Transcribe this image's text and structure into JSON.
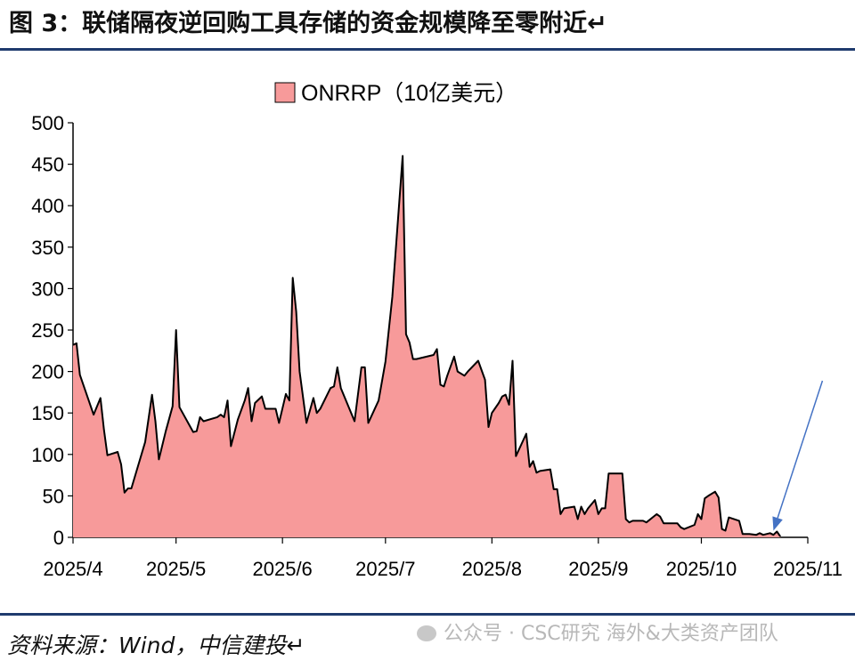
{
  "figure": {
    "title": "图 3：联储隔夜逆回购工具存储的资金规模降至零附近↵",
    "source": "资料来源：Wind，中信建投↵",
    "watermark": "公众号 · CSC研究 海外&大类资产团队"
  },
  "chart_data": {
    "type": "area",
    "title": "",
    "xlabel": "",
    "ylabel": "",
    "ylim": [
      0,
      500
    ],
    "y_ticks": [
      0,
      50,
      100,
      150,
      200,
      250,
      300,
      350,
      400,
      450,
      500
    ],
    "x_range": [
      "2025-04-01",
      "2025-11-01"
    ],
    "x_ticks": [
      {
        "date": "2025-04-01",
        "label": "2025/4"
      },
      {
        "date": "2025-05-01",
        "label": "2025/5"
      },
      {
        "date": "2025-06-01",
        "label": "2025/6"
      },
      {
        "date": "2025-07-01",
        "label": "2025/7"
      },
      {
        "date": "2025-08-01",
        "label": "2025/8"
      },
      {
        "date": "2025-09-01",
        "label": "2025/9"
      },
      {
        "date": "2025-10-01",
        "label": "2025/10"
      },
      {
        "date": "2025-11-01",
        "label": "2025/11"
      }
    ],
    "grid": false,
    "legend": "top-center",
    "colors": {
      "fill": "#f79a9a",
      "line": "#000000",
      "arrow": "#4472c4"
    },
    "annotation": {
      "type": "arrow",
      "points_to": "2025-10-22"
    },
    "series": [
      {
        "name": "ONRRP（10亿美元）",
        "points": [
          [
            "2025-04-01",
            232
          ],
          [
            "2025-04-02",
            234
          ],
          [
            "2025-04-03",
            196
          ],
          [
            "2025-04-07",
            148
          ],
          [
            "2025-04-09",
            168
          ],
          [
            "2025-04-10",
            130
          ],
          [
            "2025-04-11",
            99
          ],
          [
            "2025-04-14",
            103
          ],
          [
            "2025-04-15",
            88
          ],
          [
            "2025-04-16",
            54
          ],
          [
            "2025-04-17",
            59
          ],
          [
            "2025-04-18",
            59
          ],
          [
            "2025-04-22",
            115
          ],
          [
            "2025-04-24",
            172
          ],
          [
            "2025-04-25",
            140
          ],
          [
            "2025-04-26",
            94
          ],
          [
            "2025-04-28",
            128
          ],
          [
            "2025-04-30",
            158
          ],
          [
            "2025-05-01",
            250
          ],
          [
            "2025-05-02",
            157
          ],
          [
            "2025-05-06",
            127
          ],
          [
            "2025-05-07",
            128
          ],
          [
            "2025-05-08",
            145
          ],
          [
            "2025-05-09",
            140
          ],
          [
            "2025-05-13",
            145
          ],
          [
            "2025-05-14",
            148
          ],
          [
            "2025-05-15",
            145
          ],
          [
            "2025-05-16",
            165
          ],
          [
            "2025-05-17",
            110
          ],
          [
            "2025-05-19",
            142
          ],
          [
            "2025-05-21",
            165
          ],
          [
            "2025-05-22",
            180
          ],
          [
            "2025-05-23",
            140
          ],
          [
            "2025-05-24",
            162
          ],
          [
            "2025-05-26",
            170
          ],
          [
            "2025-05-27",
            155
          ],
          [
            "2025-05-30",
            155
          ],
          [
            "2025-05-31",
            138
          ],
          [
            "2025-06-02",
            173
          ],
          [
            "2025-06-03",
            165
          ],
          [
            "2025-06-04",
            313
          ],
          [
            "2025-06-05",
            272
          ],
          [
            "2025-06-06",
            200
          ],
          [
            "2025-06-08",
            138
          ],
          [
            "2025-06-10",
            168
          ],
          [
            "2025-06-11",
            150
          ],
          [
            "2025-06-12",
            155
          ],
          [
            "2025-06-15",
            180
          ],
          [
            "2025-06-16",
            182
          ],
          [
            "2025-06-17",
            205
          ],
          [
            "2025-06-18",
            180
          ],
          [
            "2025-06-20",
            160
          ],
          [
            "2025-06-22",
            140
          ],
          [
            "2025-06-24",
            205
          ],
          [
            "2025-06-25",
            205
          ],
          [
            "2025-06-26",
            138
          ],
          [
            "2025-06-29",
            165
          ],
          [
            "2025-07-01",
            212
          ],
          [
            "2025-07-03",
            290
          ],
          [
            "2025-07-06",
            460
          ],
          [
            "2025-07-07",
            245
          ],
          [
            "2025-07-08",
            235
          ],
          [
            "2025-07-09",
            215
          ],
          [
            "2025-07-10",
            215
          ],
          [
            "2025-07-15",
            220
          ],
          [
            "2025-07-16",
            227
          ],
          [
            "2025-07-17",
            184
          ],
          [
            "2025-07-18",
            182
          ],
          [
            "2025-07-19",
            195
          ],
          [
            "2025-07-21",
            218
          ],
          [
            "2025-07-22",
            200
          ],
          [
            "2025-07-24",
            195
          ],
          [
            "2025-07-25",
            200
          ],
          [
            "2025-07-28",
            213
          ],
          [
            "2025-07-30",
            190
          ],
          [
            "2025-07-31",
            133
          ],
          [
            "2025-08-01",
            150
          ],
          [
            "2025-08-03",
            162
          ],
          [
            "2025-08-04",
            170
          ],
          [
            "2025-08-05",
            172
          ],
          [
            "2025-08-06",
            160
          ],
          [
            "2025-08-07",
            213
          ],
          [
            "2025-08-08",
            98
          ],
          [
            "2025-08-11",
            125
          ],
          [
            "2025-08-12",
            85
          ],
          [
            "2025-08-13",
            92
          ],
          [
            "2025-08-14",
            78
          ],
          [
            "2025-08-15",
            80
          ],
          [
            "2025-08-18",
            82
          ],
          [
            "2025-08-19",
            58
          ],
          [
            "2025-08-20",
            58
          ],
          [
            "2025-08-21",
            28
          ],
          [
            "2025-08-22",
            35
          ],
          [
            "2025-08-25",
            37
          ],
          [
            "2025-08-26",
            22
          ],
          [
            "2025-08-27",
            37
          ],
          [
            "2025-08-28",
            28
          ],
          [
            "2025-08-29",
            35
          ],
          [
            "2025-08-31",
            45
          ],
          [
            "2025-09-01",
            28
          ],
          [
            "2025-09-02",
            35
          ],
          [
            "2025-09-03",
            35
          ],
          [
            "2025-09-04",
            77
          ],
          [
            "2025-09-08",
            77
          ],
          [
            "2025-09-09",
            22
          ],
          [
            "2025-09-10",
            18
          ],
          [
            "2025-09-11",
            20
          ],
          [
            "2025-09-14",
            20
          ],
          [
            "2025-09-15",
            18
          ],
          [
            "2025-09-18",
            28
          ],
          [
            "2025-09-19",
            25
          ],
          [
            "2025-09-20",
            17
          ],
          [
            "2025-09-24",
            17
          ],
          [
            "2025-09-25",
            12
          ],
          [
            "2025-09-26",
            10
          ],
          [
            "2025-09-29",
            15
          ],
          [
            "2025-09-30",
            28
          ],
          [
            "2025-10-01",
            22
          ],
          [
            "2025-10-02",
            47
          ],
          [
            "2025-10-03",
            50
          ],
          [
            "2025-10-05",
            55
          ],
          [
            "2025-10-06",
            48
          ],
          [
            "2025-10-07",
            10
          ],
          [
            "2025-10-08",
            8
          ],
          [
            "2025-10-09",
            24
          ],
          [
            "2025-10-12",
            20
          ],
          [
            "2025-10-13",
            4
          ],
          [
            "2025-10-15",
            4
          ],
          [
            "2025-10-17",
            3
          ],
          [
            "2025-10-18",
            5
          ],
          [
            "2025-10-19",
            3
          ],
          [
            "2025-10-21",
            5
          ],
          [
            "2025-10-22",
            3
          ],
          [
            "2025-10-23",
            7
          ],
          [
            "2025-10-24",
            1
          ]
        ]
      }
    ]
  }
}
